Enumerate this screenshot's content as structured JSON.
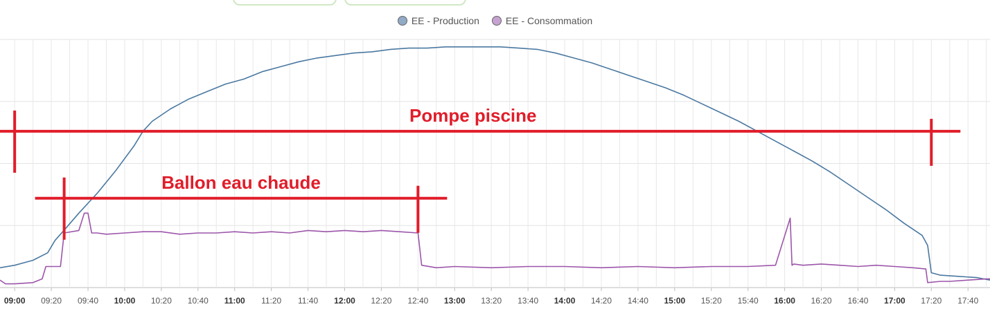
{
  "chart_data": {
    "type": "line",
    "title": "",
    "xlabel": "",
    "ylabel": "",
    "xlim": [
      "08:52",
      "17:52"
    ],
    "grid": true,
    "legend_position": "top-center",
    "x_ticks": [
      {
        "time": "09:00",
        "label": "09:00",
        "bold": true
      },
      {
        "time": "09:20",
        "label": "09:20",
        "bold": false
      },
      {
        "time": "09:40",
        "label": "09:40",
        "bold": false
      },
      {
        "time": "10:00",
        "label": "10:00",
        "bold": true
      },
      {
        "time": "10:20",
        "label": "10:20",
        "bold": false
      },
      {
        "time": "10:40",
        "label": "10:40",
        "bold": false
      },
      {
        "time": "11:00",
        "label": "11:00",
        "bold": true
      },
      {
        "time": "11:20",
        "label": "11:20",
        "bold": false
      },
      {
        "time": "11:40",
        "label": "11:40",
        "bold": false
      },
      {
        "time": "12:00",
        "label": "12:00",
        "bold": true
      },
      {
        "time": "12:20",
        "label": "12:20",
        "bold": false
      },
      {
        "time": "12:40",
        "label": "12:40",
        "bold": false
      },
      {
        "time": "13:00",
        "label": "13:00",
        "bold": true
      },
      {
        "time": "13:20",
        "label": "13:20",
        "bold": false
      },
      {
        "time": "13:40",
        "label": "13:40",
        "bold": false
      },
      {
        "time": "14:00",
        "label": "14:00",
        "bold": true
      },
      {
        "time": "14:20",
        "label": "14:20",
        "bold": false
      },
      {
        "time": "14:40",
        "label": "14:40",
        "bold": false
      },
      {
        "time": "15:00",
        "label": "15:00",
        "bold": true
      },
      {
        "time": "15:20",
        "label": "15:20",
        "bold": false
      },
      {
        "time": "15:40",
        "label": "15:40",
        "bold": false
      },
      {
        "time": "16:00",
        "label": "16:00",
        "bold": true
      },
      {
        "time": "16:20",
        "label": "16:20",
        "bold": false
      },
      {
        "time": "16:40",
        "label": "16:40",
        "bold": false
      },
      {
        "time": "17:00",
        "label": "17:00",
        "bold": true
      },
      {
        "time": "17:20",
        "label": "17:20",
        "bold": false
      },
      {
        "time": "17:40",
        "label": "17:40",
        "bold": false
      }
    ],
    "ylim": [
      0,
      100
    ],
    "y_grid": [
      0,
      25,
      50,
      75,
      100
    ],
    "series": [
      {
        "name": "EE - Production",
        "color": "#4a78a0",
        "legend_fill": "#92abc6",
        "x": [
          "08:52",
          "09:00",
          "09:10",
          "09:18",
          "09:22",
          "09:28",
          "09:35",
          "09:45",
          "09:55",
          "10:05",
          "10:10",
          "10:15",
          "10:25",
          "10:35",
          "10:45",
          "10:55",
          "11:05",
          "11:15",
          "11:25",
          "11:35",
          "11:45",
          "11:55",
          "12:05",
          "12:15",
          "12:25",
          "12:35",
          "12:45",
          "12:55",
          "13:05",
          "13:15",
          "13:25",
          "13:35",
          "13:45",
          "13:55",
          "14:05",
          "14:15",
          "14:25",
          "14:35",
          "14:45",
          "14:55",
          "15:05",
          "15:15",
          "15:25",
          "15:35",
          "15:45",
          "15:55",
          "16:05",
          "16:15",
          "16:25",
          "16:35",
          "16:45",
          "16:55",
          "17:05",
          "17:15",
          "17:18",
          "17:20",
          "17:25",
          "17:35",
          "17:45",
          "17:52"
        ],
        "y": [
          8,
          9,
          11,
          14,
          19,
          24,
          30,
          38,
          47,
          57,
          63,
          67,
          72,
          76,
          79,
          82,
          84,
          87,
          89,
          91,
          92.5,
          93.5,
          94.5,
          95,
          96,
          96.5,
          96.5,
          97,
          97,
          97,
          97,
          96.5,
          96,
          94.5,
          92.5,
          90.5,
          88,
          85.5,
          83,
          80.5,
          77.5,
          74,
          70.5,
          67,
          63,
          59,
          55,
          51,
          46.5,
          41.5,
          36.5,
          31.5,
          26,
          21,
          17,
          6,
          5,
          4.5,
          4,
          3
        ]
      },
      {
        "name": "EE - Consommation",
        "color": "#9c55aa",
        "legend_fill": "#c6a2d1",
        "x": [
          "08:52",
          "08:55",
          "09:00",
          "09:10",
          "09:15",
          "09:17",
          "09:25",
          "09:27",
          "09:35",
          "09:38",
          "09:40",
          "09:42",
          "09:45",
          "09:50",
          "10:00",
          "10:10",
          "10:20",
          "10:30",
          "10:40",
          "10:50",
          "11:00",
          "11:10",
          "11:20",
          "11:30",
          "11:40",
          "11:50",
          "12:00",
          "12:10",
          "12:20",
          "12:30",
          "12:40",
          "12:42",
          "12:50",
          "13:00",
          "13:20",
          "13:40",
          "14:00",
          "14:20",
          "14:40",
          "15:00",
          "15:20",
          "15:40",
          "15:55",
          "16:03",
          "16:04",
          "16:05",
          "16:10",
          "16:20",
          "16:30",
          "16:40",
          "16:50",
          "17:00",
          "17:10",
          "17:17",
          "17:18",
          "17:25",
          "17:30",
          "17:40",
          "17:50",
          "17:52"
        ],
        "y": [
          3,
          1.5,
          1.5,
          2,
          3.5,
          8.5,
          8.5,
          22,
          23,
          30,
          30,
          22,
          22,
          21.5,
          22,
          22.5,
          22.5,
          21.5,
          22,
          22,
          22.5,
          22,
          22.5,
          22,
          23,
          22.5,
          23,
          22.5,
          23,
          22.5,
          22,
          9,
          8,
          8.5,
          8,
          8.5,
          8.5,
          8,
          8.5,
          8,
          8.5,
          8.5,
          9,
          28,
          9,
          9.5,
          9,
          9.5,
          9,
          8.5,
          9,
          8.5,
          8,
          7.5,
          2,
          2.5,
          2.5,
          3,
          3.5,
          3.5
        ]
      }
    ],
    "annotations": [
      {
        "label": "Pompe piscine",
        "start": "09:00",
        "end": "17:20",
        "y": 63,
        "color": "#e11d2a"
      },
      {
        "label": "Ballon eau chaude",
        "start": "09:27",
        "end": "12:40",
        "y": 36,
        "color": "#e11d2a"
      }
    ]
  }
}
